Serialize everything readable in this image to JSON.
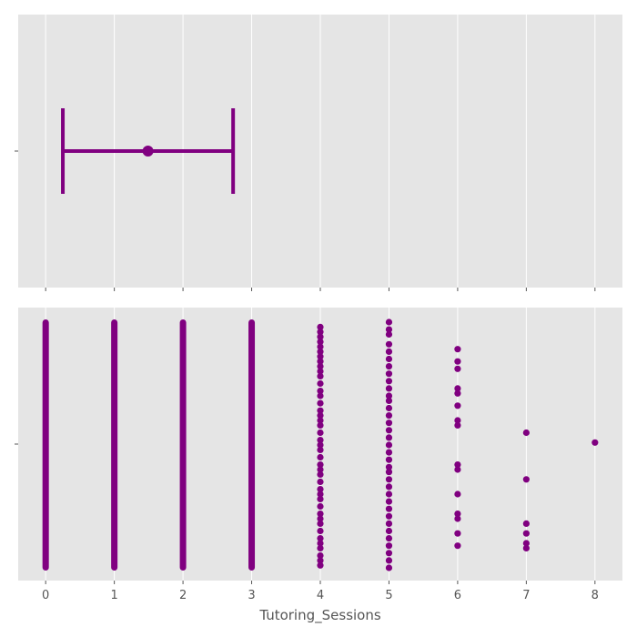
{
  "chart_data": [
    {
      "panel": "top",
      "type": "pointrange",
      "mean": 1.49,
      "ci": [
        0.25,
        2.73
      ],
      "xlim": [
        -0.4,
        8.4
      ],
      "xticks": [
        0,
        1,
        2,
        3,
        4,
        5,
        6,
        7,
        8
      ],
      "grid": true,
      "color": "#800080"
    },
    {
      "panel": "bottom",
      "type": "scatter",
      "xlabel": "Tutoring_Sessions",
      "xlim": [
        -0.4,
        8.4
      ],
      "xticks": [
        "0",
        "1",
        "2",
        "3",
        "4",
        "5",
        "6",
        "7",
        "8"
      ],
      "grid": true,
      "color": "#800080",
      "dense_columns": [
        0,
        1,
        2,
        3
      ],
      "sparse_points": {
        "4": [
          0.02,
          0.04,
          0.06,
          0.08,
          0.1,
          0.12,
          0.14,
          0.16,
          0.18,
          0.2,
          0.22,
          0.25,
          0.28,
          0.3,
          0.33,
          0.36,
          0.38,
          0.4,
          0.42,
          0.45,
          0.48,
          0.5,
          0.52,
          0.55,
          0.58,
          0.6,
          0.62,
          0.65,
          0.68,
          0.7,
          0.72,
          0.75,
          0.78,
          0.8,
          0.82,
          0.85,
          0.88,
          0.9,
          0.92,
          0.95,
          0.97,
          0.99
        ],
        "5": [
          0.0,
          0.03,
          0.05,
          0.09,
          0.12,
          0.15,
          0.18,
          0.21,
          0.24,
          0.27,
          0.3,
          0.32,
          0.35,
          0.38,
          0.41,
          0.44,
          0.47,
          0.5,
          0.53,
          0.56,
          0.59,
          0.61,
          0.64,
          0.67,
          0.7,
          0.73,
          0.76,
          0.79,
          0.82,
          0.85,
          0.88,
          0.91,
          0.94,
          0.97,
          1.0
        ],
        "6": [
          0.11,
          0.16,
          0.19,
          0.27,
          0.29,
          0.34,
          0.4,
          0.42,
          0.58,
          0.6,
          0.7,
          0.78,
          0.8,
          0.86,
          0.91
        ],
        "7": [
          0.45,
          0.64,
          0.82,
          0.86,
          0.9,
          0.92
        ],
        "8": [
          0.49
        ]
      }
    }
  ]
}
